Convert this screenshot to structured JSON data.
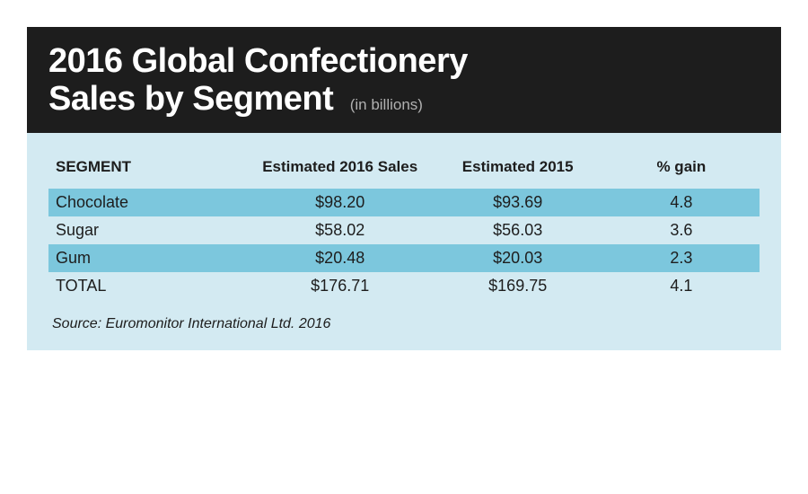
{
  "infographic": {
    "title_line1": "2016 Global Confectionery",
    "title_line2": "Sales by Segment",
    "subtitle": "(in billions)",
    "header": {
      "background_color": "#1d1d1d",
      "title_color": "#ffffff",
      "subtitle_color": "#b0b0b0",
      "title_fontsize": 38,
      "subtitle_fontsize": 17
    },
    "body": {
      "background_color": "#d3eaf2",
      "row_stripe_color": "#7cc7dd",
      "text_color": "#1d1d1d",
      "header_fontsize": 17,
      "cell_fontsize": 18,
      "source_fontsize": 16
    },
    "columns": [
      {
        "key": "segment",
        "label": "SEGMENT",
        "align": "left",
        "width_pct": 28
      },
      {
        "key": "sales2016",
        "label": "Estimated 2016 Sales",
        "align": "center",
        "width_pct": 26
      },
      {
        "key": "sales2015",
        "label": "Estimated 2015",
        "align": "center",
        "width_pct": 24
      },
      {
        "key": "gain",
        "label": "% gain",
        "align": "center",
        "width_pct": 22
      }
    ],
    "rows": [
      {
        "segment": "Chocolate",
        "sales2016": "$98.20",
        "sales2015": "$93.69",
        "gain": "4.8",
        "striped": true
      },
      {
        "segment": "Sugar",
        "sales2016": "$58.02",
        "sales2015": "$56.03",
        "gain": "3.6",
        "striped": false
      },
      {
        "segment": "Gum",
        "sales2016": "$20.48",
        "sales2015": "$20.03",
        "gain": "2.3",
        "striped": true
      },
      {
        "segment": "TOTAL",
        "sales2016": "$176.71",
        "sales2015": "$169.75",
        "gain": "4.1",
        "striped": false
      }
    ],
    "source": "Source: Euromonitor International Ltd. 2016"
  }
}
